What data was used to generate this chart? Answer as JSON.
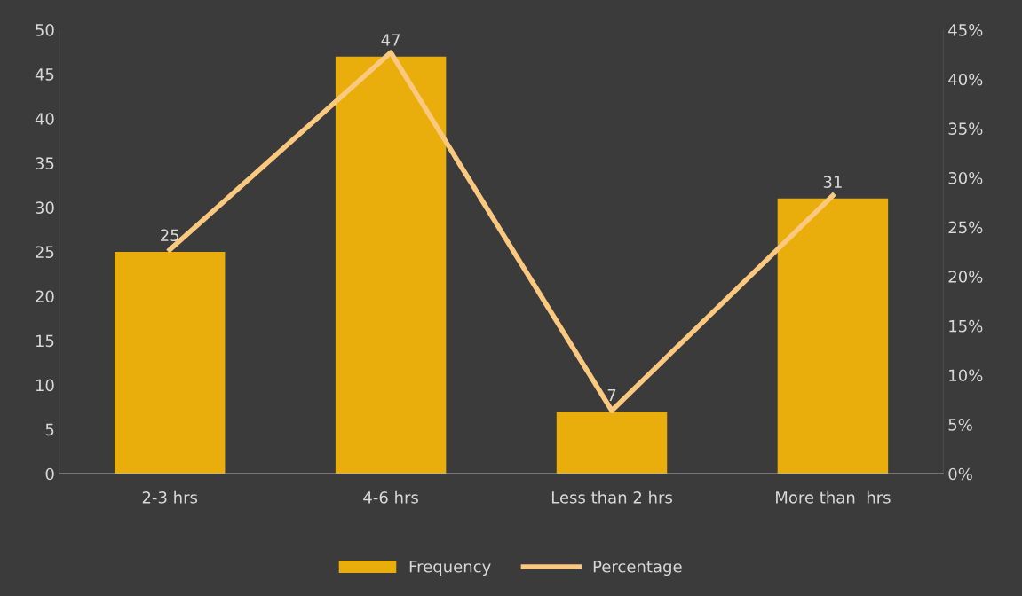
{
  "chart_data": {
    "type": "bar",
    "categories": [
      "2-3 hrs",
      "4-6 hrs",
      "Less than 2 hrs",
      "More than  hrs"
    ],
    "series": [
      {
        "name": "Frequency",
        "color": "#e9ad0c",
        "values": [
          25,
          47,
          7,
          31
        ],
        "value_labels": [
          "25",
          "47",
          "7",
          "31"
        ]
      },
      {
        "name": "Percentage",
        "type": "line",
        "axis": "y2",
        "color": "#fbc880",
        "values": [
          22.7,
          42.7,
          6.4,
          28.2
        ]
      }
    ],
    "ylim": [
      0,
      50
    ],
    "yticks": [
      0,
      5,
      10,
      15,
      20,
      25,
      30,
      35,
      40,
      45,
      50
    ],
    "y2lim": [
      0,
      45
    ],
    "y2ticks": [
      {
        "value": 0,
        "label": "0%"
      },
      {
        "value": 5,
        "label": "5%"
      },
      {
        "value": 10,
        "label": "10%"
      },
      {
        "value": 15,
        "label": "15%"
      },
      {
        "value": 20,
        "label": "20%"
      },
      {
        "value": 25,
        "label": "25%"
      },
      {
        "value": 30,
        "label": "30%"
      },
      {
        "value": 35,
        "label": "35%"
      },
      {
        "value": 40,
        "label": "40%"
      },
      {
        "value": 45,
        "label": "45%"
      }
    ],
    "grid": false,
    "legend": "bottom",
    "marker": "none",
    "line_style": "solid"
  }
}
